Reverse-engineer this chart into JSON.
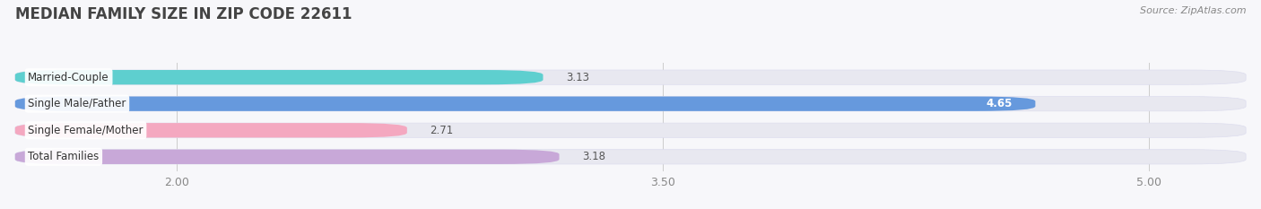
{
  "title": "MEDIAN FAMILY SIZE IN ZIP CODE 22611",
  "source": "Source: ZipAtlas.com",
  "categories": [
    "Married-Couple",
    "Single Male/Father",
    "Single Female/Mother",
    "Total Families"
  ],
  "values": [
    3.13,
    4.65,
    2.71,
    3.18
  ],
  "bar_colors": [
    "#5ecfcf",
    "#6699dd",
    "#f4a8c0",
    "#c8a8d8"
  ],
  "background_color": "#f7f7fa",
  "bar_bg_color": "#e8e8f0",
  "xlim_min": 1.5,
  "xlim_max": 5.3,
  "xticks": [
    2.0,
    3.5,
    5.0
  ],
  "label_fontsize": 8.5,
  "value_fontsize": 8.5,
  "title_fontsize": 12,
  "source_fontsize": 8
}
